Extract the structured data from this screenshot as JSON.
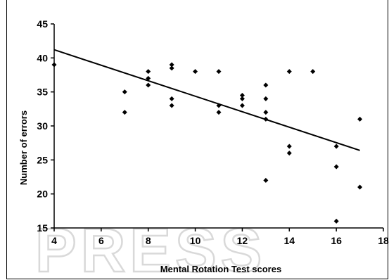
{
  "chart_data": {
    "type": "scatter",
    "xlabel": "Mental Rotation  Test scores",
    "ylabel": "Number of errors",
    "xlim": [
      4,
      18
    ],
    "ylim": [
      15,
      45
    ],
    "xticks": [
      4,
      6,
      8,
      10,
      12,
      14,
      16,
      18
    ],
    "yticks": [
      15,
      20,
      25,
      30,
      35,
      40,
      45
    ],
    "grid": false,
    "legend": "none",
    "marker_color": "#000000",
    "points": [
      {
        "x": 4,
        "y": 39
      },
      {
        "x": 7,
        "y": 35
      },
      {
        "x": 7,
        "y": 32
      },
      {
        "x": 8,
        "y": 38
      },
      {
        "x": 8,
        "y": 37
      },
      {
        "x": 8,
        "y": 36
      },
      {
        "x": 9,
        "y": 39
      },
      {
        "x": 9,
        "y": 38.5
      },
      {
        "x": 9,
        "y": 34
      },
      {
        "x": 9,
        "y": 33
      },
      {
        "x": 10,
        "y": 38
      },
      {
        "x": 11,
        "y": 38
      },
      {
        "x": 11,
        "y": 33
      },
      {
        "x": 11,
        "y": 32
      },
      {
        "x": 12,
        "y": 34.5
      },
      {
        "x": 12,
        "y": 34
      },
      {
        "x": 12,
        "y": 33
      },
      {
        "x": 13,
        "y": 36
      },
      {
        "x": 13,
        "y": 34
      },
      {
        "x": 13,
        "y": 32
      },
      {
        "x": 13,
        "y": 31
      },
      {
        "x": 13,
        "y": 22
      },
      {
        "x": 14,
        "y": 38
      },
      {
        "x": 14,
        "y": 27
      },
      {
        "x": 14,
        "y": 26
      },
      {
        "x": 15,
        "y": 38
      },
      {
        "x": 16,
        "y": 27
      },
      {
        "x": 16,
        "y": 24
      },
      {
        "x": 16,
        "y": 16
      },
      {
        "x": 17,
        "y": 31
      },
      {
        "x": 17,
        "y": 21
      }
    ],
    "trendline": {
      "x": [
        4,
        17
      ],
      "y": [
        41.2,
        26.4
      ]
    }
  },
  "watermark": {
    "text": "PRESS"
  }
}
